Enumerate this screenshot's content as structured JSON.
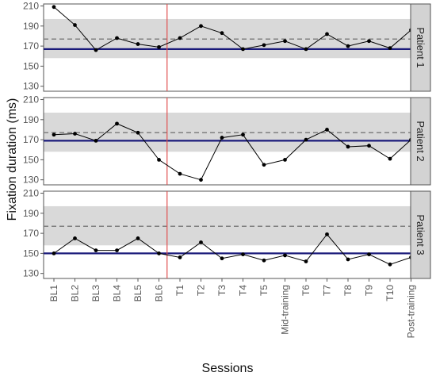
{
  "chart_data": {
    "type": "line",
    "ylabel": "Fixation duration (ms)",
    "xlabel": "Sessions",
    "categories": [
      "BL1",
      "BL2",
      "BL3",
      "BL4",
      "BL5",
      "BL6",
      "T1",
      "T2",
      "T3",
      "T4",
      "T5",
      "Mid-training",
      "T6",
      "T7",
      "T8",
      "T9",
      "T10",
      "Post-training"
    ],
    "ylim": [
      125,
      212
    ],
    "yticks": [
      130,
      150,
      170,
      190,
      210
    ],
    "grid": false,
    "phase_change_after": "BL6",
    "colors": {
      "series_line": "#000000",
      "baseline_mean": "#1a1a7a",
      "band": "#d9d9d9",
      "reference_dashed": "#808080",
      "phase_line": "#e05050",
      "strip": "#d3d3d3"
    },
    "panels": [
      {
        "name": "Patient 1",
        "values": [
          209,
          191,
          166,
          178,
          172,
          169,
          178,
          190,
          183,
          167,
          171,
          175,
          167,
          182,
          170,
          175,
          168,
          186
        ],
        "baseline_mean": 167,
        "band": [
          158,
          197
        ],
        "reference": 177
      },
      {
        "name": "Patient 2",
        "values": [
          175,
          176,
          169,
          186,
          177,
          150,
          136,
          130,
          172,
          175,
          145,
          150,
          170,
          180,
          163,
          164,
          151,
          170
        ],
        "baseline_mean": 169,
        "band": [
          158,
          197
        ],
        "reference": 177
      },
      {
        "name": "Patient 3",
        "values": [
          150,
          165,
          153,
          153,
          165,
          150,
          146,
          161,
          145,
          149,
          143,
          148,
          142,
          169,
          144,
          149,
          139,
          146
        ],
        "baseline_mean": 150,
        "band": [
          158,
          197
        ],
        "reference": 177
      }
    ]
  }
}
